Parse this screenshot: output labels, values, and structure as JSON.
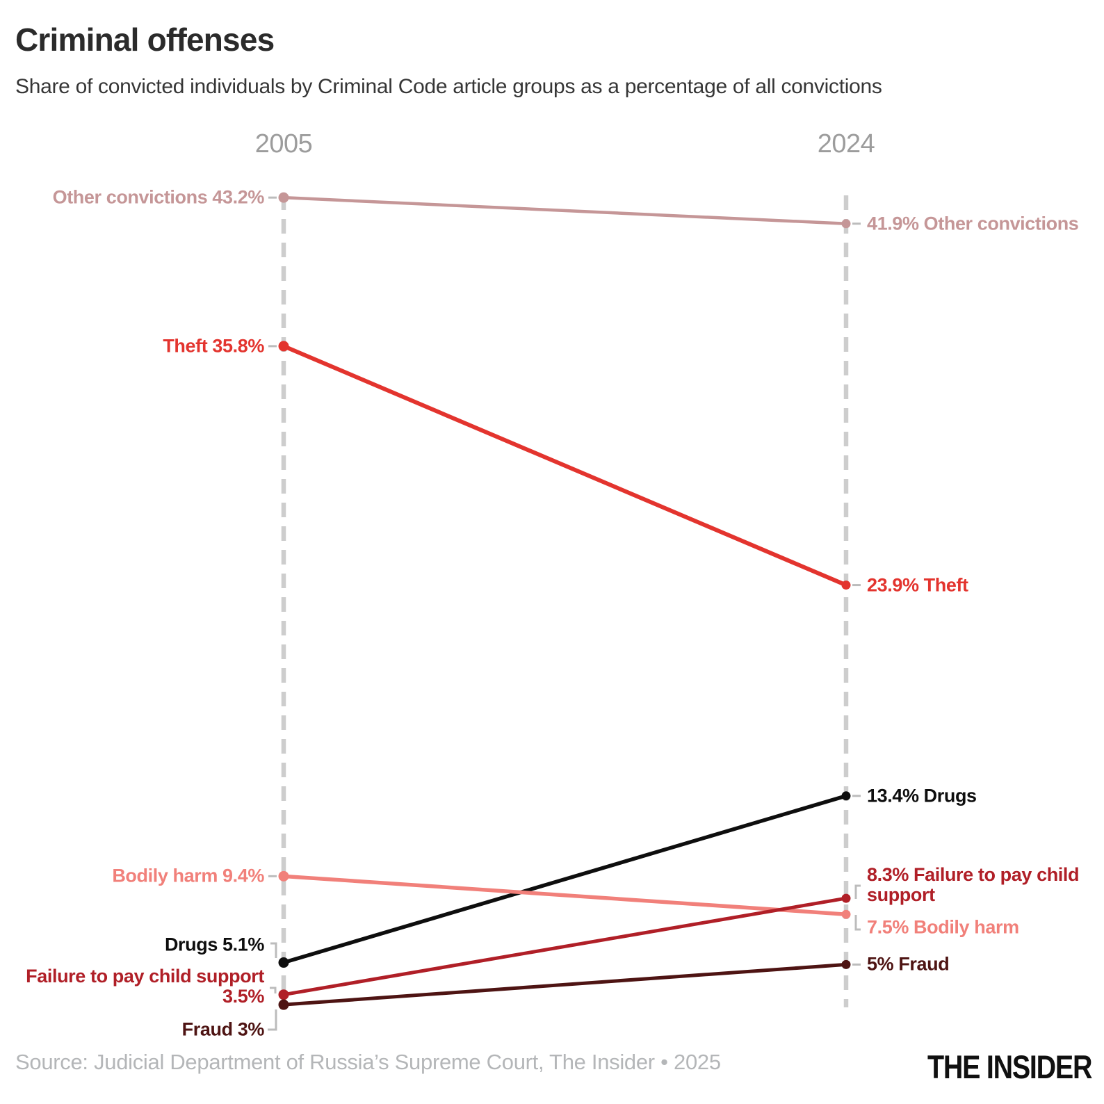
{
  "header": {
    "title": "Criminal offenses",
    "subtitle": "Share of convicted individuals by Criminal Code article groups as a percentage of all convictions"
  },
  "footer": {
    "source": "Source: Judicial Department of Russia’s Supreme Court, The Insider • 2025",
    "logo": "THE INSIDER"
  },
  "chart_data": {
    "type": "line",
    "subtype": "slopegraph",
    "columns": [
      "2005",
      "2024"
    ],
    "unit": "%",
    "ylim": [
      0,
      45
    ],
    "grid": "off",
    "axis_color": "#cdcdcd",
    "connector_color": "#bcbcbc",
    "series": [
      {
        "name": "Other convictions",
        "color": "#c59697",
        "values": [
          43.2,
          41.9
        ],
        "left_label": "Other convictions 43.2%",
        "right_label": "41.9% Other convictions"
      },
      {
        "name": "Theft",
        "color": "#e3342e",
        "values": [
          35.8,
          23.9
        ],
        "left_label": "Theft 35.8%",
        "right_label": "23.9% Theft"
      },
      {
        "name": "Drugs",
        "color": "#0e0e0e",
        "values": [
          5.1,
          13.4
        ],
        "left_label": "Drugs 5.1%",
        "right_label": "13.4% Drugs"
      },
      {
        "name": "Bodily harm",
        "color": "#f1807a",
        "values": [
          9.4,
          7.5
        ],
        "left_label": "Bodily harm 9.4%",
        "right_label": "7.5% Bodily harm"
      },
      {
        "name": "Failure to pay child support",
        "color": "#b01f27",
        "values": [
          3.5,
          8.3
        ],
        "left_label": "Failure to pay child support\n3.5%",
        "right_label": "8.3% Failure to pay child\nsupport"
      },
      {
        "name": "Fraud",
        "color": "#4e1413",
        "values": [
          3,
          5
        ],
        "left_label": "Fraud 3%",
        "right_label": "5% Fraud"
      }
    ]
  }
}
